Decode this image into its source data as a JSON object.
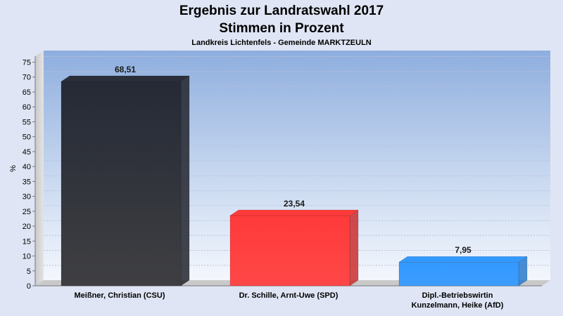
{
  "chart_data": {
    "type": "bar",
    "title": "Ergebnis zur Landratswahl 2017",
    "title2": "Stimmen in Prozent",
    "subtitle": "Landkreis Lichtenfels - Gemeinde MARKTZEULN",
    "ylabel": "%",
    "ylim": [
      0,
      77
    ],
    "yticks": [
      0,
      5,
      10,
      15,
      20,
      25,
      30,
      35,
      40,
      45,
      50,
      55,
      60,
      65,
      70,
      75
    ],
    "grid": true,
    "categories": [
      [
        "Meißner, Christian (CSU)"
      ],
      [
        "Dr. Schille, Arnt-Uwe (SPD)"
      ],
      [
        "Dipl.-Betriebswirtin",
        "Kunzelmann, Heike (AfD)"
      ]
    ],
    "values": [
      68.51,
      23.54,
      7.95
    ],
    "value_labels": [
      "68,51",
      "23,54",
      "7,95"
    ],
    "colors": [
      "#2b2f3a",
      "#ff3a3a",
      "#3399ff"
    ]
  }
}
